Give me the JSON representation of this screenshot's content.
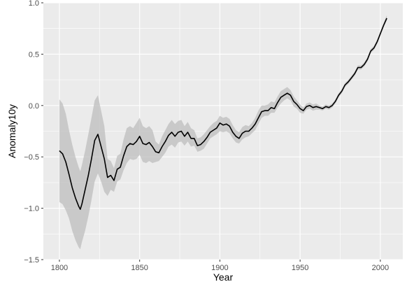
{
  "colors": {
    "panel": "#ebebeb",
    "grid_major": "#ffffff",
    "ribbon": "#bdbdbd",
    "line": "#000000",
    "tick_text": "#4d4d4d"
  },
  "chart_data": {
    "type": "line",
    "xlabel": "Year",
    "ylabel": "Anomaly10y",
    "xlim": [
      1790,
      2014
    ],
    "ylim": [
      -1.5,
      1.0
    ],
    "x_ticks": [
      1800,
      1850,
      1900,
      1950,
      2000
    ],
    "y_ticks": [
      -1.5,
      -1.0,
      -0.5,
      0.0,
      0.5,
      1.0
    ],
    "x_tick_labels": [
      "1800",
      "1850",
      "1900",
      "1950",
      "2000"
    ],
    "y_tick_labels": [
      "−1.5",
      "−1.0",
      "−0.5",
      "0.0",
      "0.5",
      "1.0"
    ],
    "grid": true,
    "series": [
      {
        "x": [
          1800,
          1802,
          1804,
          1806,
          1808,
          1810,
          1812,
          1813,
          1814,
          1816,
          1818,
          1820,
          1822,
          1824,
          1826,
          1828,
          1830,
          1832,
          1834,
          1836,
          1838,
          1840,
          1842,
          1844,
          1846,
          1848,
          1850,
          1852,
          1854,
          1856,
          1858,
          1860,
          1862,
          1864,
          1866,
          1868,
          1870,
          1872,
          1874,
          1876,
          1878,
          1880,
          1882,
          1884,
          1886,
          1888,
          1890,
          1892,
          1894,
          1896,
          1898,
          1900,
          1902,
          1904,
          1906,
          1908,
          1910,
          1912,
          1914,
          1916,
          1918,
          1920,
          1922,
          1924,
          1926,
          1928,
          1930,
          1932,
          1934,
          1936,
          1938,
          1940,
          1942,
          1944,
          1946,
          1948,
          1950,
          1952,
          1954,
          1956,
          1958,
          1960,
          1962,
          1964,
          1966,
          1968,
          1970,
          1972,
          1974,
          1976,
          1978,
          1980,
          1982,
          1984,
          1986,
          1988,
          1990,
          1992,
          1994,
          1996,
          1998,
          2000,
          2002,
          2004
        ],
        "y": [
          -0.44,
          -0.47,
          -0.55,
          -0.67,
          -0.8,
          -0.9,
          -0.98,
          -1.01,
          -0.96,
          -0.82,
          -0.68,
          -0.52,
          -0.34,
          -0.28,
          -0.4,
          -0.52,
          -0.7,
          -0.68,
          -0.73,
          -0.62,
          -0.6,
          -0.49,
          -0.4,
          -0.37,
          -0.38,
          -0.35,
          -0.3,
          -0.37,
          -0.38,
          -0.36,
          -0.4,
          -0.45,
          -0.46,
          -0.4,
          -0.35,
          -0.29,
          -0.26,
          -0.3,
          -0.26,
          -0.25,
          -0.3,
          -0.26,
          -0.32,
          -0.32,
          -0.39,
          -0.38,
          -0.35,
          -0.31,
          -0.26,
          -0.24,
          -0.22,
          -0.17,
          -0.19,
          -0.18,
          -0.2,
          -0.26,
          -0.3,
          -0.32,
          -0.27,
          -0.25,
          -0.25,
          -0.22,
          -0.18,
          -0.12,
          -0.06,
          -0.05,
          -0.05,
          -0.02,
          -0.03,
          0.03,
          0.08,
          0.1,
          0.12,
          0.1,
          0.04,
          0.01,
          -0.03,
          -0.05,
          -0.01,
          0.0,
          -0.02,
          -0.01,
          -0.02,
          -0.03,
          -0.01,
          -0.02,
          0.0,
          0.04,
          0.1,
          0.14,
          0.2,
          0.23,
          0.27,
          0.31,
          0.37,
          0.37,
          0.4,
          0.45,
          0.53,
          0.56,
          0.62,
          0.7,
          0.78,
          0.85
        ],
        "lower": [
          -0.94,
          -0.96,
          -1.02,
          -1.1,
          -1.22,
          -1.31,
          -1.38,
          -1.4,
          -1.33,
          -1.22,
          -1.08,
          -0.92,
          -0.74,
          -0.66,
          -0.74,
          -0.84,
          -0.88,
          -0.82,
          -0.84,
          -0.74,
          -0.72,
          -0.63,
          -0.56,
          -0.52,
          -0.53,
          -0.52,
          -0.48,
          -0.55,
          -0.56,
          -0.54,
          -0.56,
          -0.55,
          -0.54,
          -0.5,
          -0.46,
          -0.4,
          -0.38,
          -0.41,
          -0.36,
          -0.35,
          -0.39,
          -0.35,
          -0.4,
          -0.39,
          -0.45,
          -0.44,
          -0.42,
          -0.37,
          -0.32,
          -0.3,
          -0.28,
          -0.25,
          -0.26,
          -0.25,
          -0.27,
          -0.32,
          -0.36,
          -0.37,
          -0.33,
          -0.31,
          -0.3,
          -0.27,
          -0.24,
          -0.18,
          -0.12,
          -0.1,
          -0.1,
          -0.07,
          -0.07,
          -0.02,
          0.02,
          0.05,
          0.07,
          0.05,
          -0.01,
          -0.03,
          -0.07,
          -0.08,
          -0.04,
          -0.03,
          -0.05,
          -0.04,
          -0.04,
          -0.05,
          -0.03,
          -0.04,
          -0.02,
          0.02,
          0.08,
          0.12,
          0.18,
          0.21,
          0.25,
          0.29,
          0.35,
          0.35,
          0.38,
          0.43,
          0.51,
          0.54,
          0.6,
          0.68,
          0.76,
          0.83
        ],
        "upper": [
          0.06,
          0.02,
          -0.08,
          -0.24,
          -0.38,
          -0.5,
          -0.6,
          -0.64,
          -0.58,
          -0.44,
          -0.28,
          -0.12,
          0.05,
          0.1,
          -0.05,
          -0.2,
          -0.52,
          -0.54,
          -0.61,
          -0.49,
          -0.47,
          -0.33,
          -0.22,
          -0.2,
          -0.22,
          -0.17,
          -0.12,
          -0.2,
          -0.22,
          -0.2,
          -0.24,
          -0.35,
          -0.38,
          -0.3,
          -0.24,
          -0.18,
          -0.14,
          -0.18,
          -0.15,
          -0.14,
          -0.2,
          -0.16,
          -0.22,
          -0.24,
          -0.32,
          -0.31,
          -0.28,
          -0.24,
          -0.2,
          -0.17,
          -0.15,
          -0.1,
          -0.12,
          -0.11,
          -0.13,
          -0.19,
          -0.24,
          -0.26,
          -0.21,
          -0.19,
          -0.2,
          -0.17,
          -0.12,
          -0.05,
          0.0,
          0.0,
          0.01,
          0.04,
          0.03,
          0.09,
          0.14,
          0.16,
          0.18,
          0.15,
          0.09,
          0.05,
          0.01,
          -0.02,
          0.02,
          0.03,
          0.01,
          0.02,
          0.0,
          -0.01,
          0.01,
          0.0,
          0.02,
          0.06,
          0.12,
          0.16,
          0.22,
          0.25,
          0.29,
          0.33,
          0.39,
          0.39,
          0.42,
          0.47,
          0.55,
          0.58,
          0.64,
          0.72,
          0.8,
          0.88
        ]
      }
    ]
  }
}
